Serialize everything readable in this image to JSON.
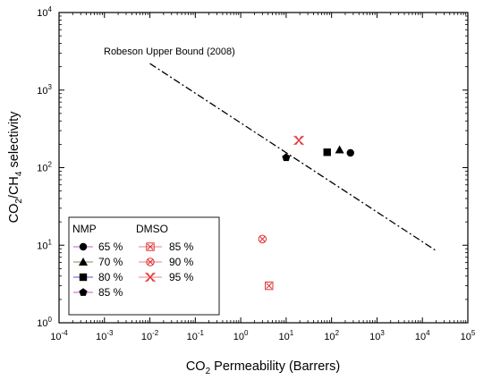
{
  "chart_data": {
    "type": "scatter",
    "title": "",
    "xscale": "log",
    "yscale": "log",
    "xlim": [
      0.0001,
      100000
    ],
    "ylim": [
      1,
      10000
    ],
    "xlabel": {
      "main": "CO",
      "sub": "2",
      "rest": " Permeability (Barrers)"
    },
    "ylabel": {
      "a": "CO",
      "b": "2",
      "c": "/CH",
      "d": "4",
      "e": " selectivity"
    },
    "xticks": [
      {
        "value": 0.0001,
        "base": "10",
        "exp": "-4"
      },
      {
        "value": 0.001,
        "base": "10",
        "exp": "-3"
      },
      {
        "value": 0.01,
        "base": "10",
        "exp": "-2"
      },
      {
        "value": 0.1,
        "base": "10",
        "exp": "-1"
      },
      {
        "value": 1,
        "base": "10",
        "exp": "0"
      },
      {
        "value": 10,
        "base": "10",
        "exp": "1"
      },
      {
        "value": 100,
        "base": "10",
        "exp": "2"
      },
      {
        "value": 1000,
        "base": "10",
        "exp": "3"
      },
      {
        "value": 10000,
        "base": "10",
        "exp": "4"
      },
      {
        "value": 100000,
        "base": "10",
        "exp": "5"
      }
    ],
    "yticks": [
      {
        "value": 1,
        "base": "10",
        "exp": "0"
      },
      {
        "value": 10,
        "base": "10",
        "exp": "1"
      },
      {
        "value": 100,
        "base": "10",
        "exp": "2"
      },
      {
        "value": 1000,
        "base": "10",
        "exp": "3"
      },
      {
        "value": 10000,
        "base": "10",
        "exp": "4"
      }
    ],
    "upper_bound": {
      "label": "Robeson Upper Bound (2008)",
      "x": [
        0.01,
        20000
      ],
      "y": [
        2200,
        8.5
      ],
      "style": "dash-dot",
      "color": "#000000"
    },
    "legend": {
      "groups": [
        "NMP",
        "DMSO"
      ],
      "placement": "lower-left"
    },
    "series": [
      {
        "name": "65 %",
        "group": "NMP",
        "marker": "circle",
        "color": "#000000",
        "x": [
          260
        ],
        "y": [
          155
        ]
      },
      {
        "name": "70 %",
        "group": "NMP",
        "marker": "triangle",
        "color": "#000000",
        "x": [
          150
        ],
        "y": [
          170
        ]
      },
      {
        "name": "80 %",
        "group": "NMP",
        "marker": "square",
        "color": "#000000",
        "x": [
          80
        ],
        "y": [
          158
        ]
      },
      {
        "name": "85 %",
        "group": "NMP",
        "marker": "pentagon",
        "color": "#000000",
        "x": [
          10
        ],
        "y": [
          135
        ]
      },
      {
        "name": "85 %",
        "group": "DMSO",
        "marker": "boxed-x",
        "color": "#e03030",
        "x": [
          4.2
        ],
        "y": [
          3.0
        ]
      },
      {
        "name": "90 %",
        "group": "DMSO",
        "marker": "circled-x",
        "color": "#e03030",
        "x": [
          3.0
        ],
        "y": [
          12
        ]
      },
      {
        "name": "95 %",
        "group": "DMSO",
        "marker": "double-x",
        "color": "#e03030",
        "x": [
          19
        ],
        "y": [
          225
        ]
      }
    ]
  }
}
